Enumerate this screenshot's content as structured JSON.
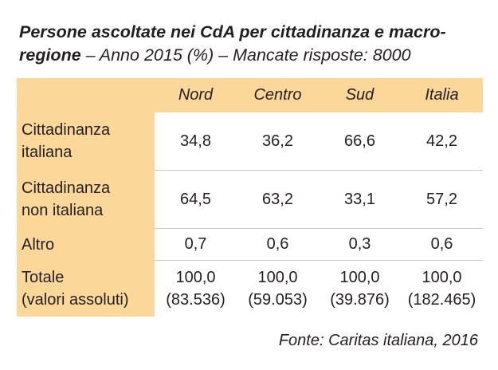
{
  "title": {
    "bold": "Persone ascoltate nei CdA per cittadinanza e macro-regione",
    "rest": " – Anno 2015 (%) – Mancate risposte: 8000"
  },
  "table": {
    "columns": [
      "Nord",
      "Centro",
      "Sud",
      "Italia"
    ],
    "rows": [
      {
        "label": [
          "Cittadinanza",
          "italiana"
        ],
        "values": [
          "34,8",
          "36,2",
          "66,6",
          "42,2"
        ]
      },
      {
        "label": [
          "Cittadinanza",
          "non italiana"
        ],
        "values": [
          "64,5",
          "63,2",
          "33,1",
          "57,2"
        ]
      },
      {
        "label": [
          "Altro"
        ],
        "values": [
          "0,7",
          "0,6",
          "0,3",
          "0,6"
        ]
      },
      {
        "label": [
          "Totale",
          "(valori assoluti)"
        ],
        "values": [
          [
            "100,0",
            "(83.536)"
          ],
          [
            "100,0",
            "(59.053)"
          ],
          [
            "100,0",
            "(39.876)"
          ],
          [
            "100,0",
            "(182.465)"
          ]
        ]
      }
    ]
  },
  "source": "Fonte: Caritas italiana, 2016",
  "colors": {
    "header_bg": "#fbd89a",
    "rule": "#c8c8c8",
    "text": "#231f20"
  }
}
